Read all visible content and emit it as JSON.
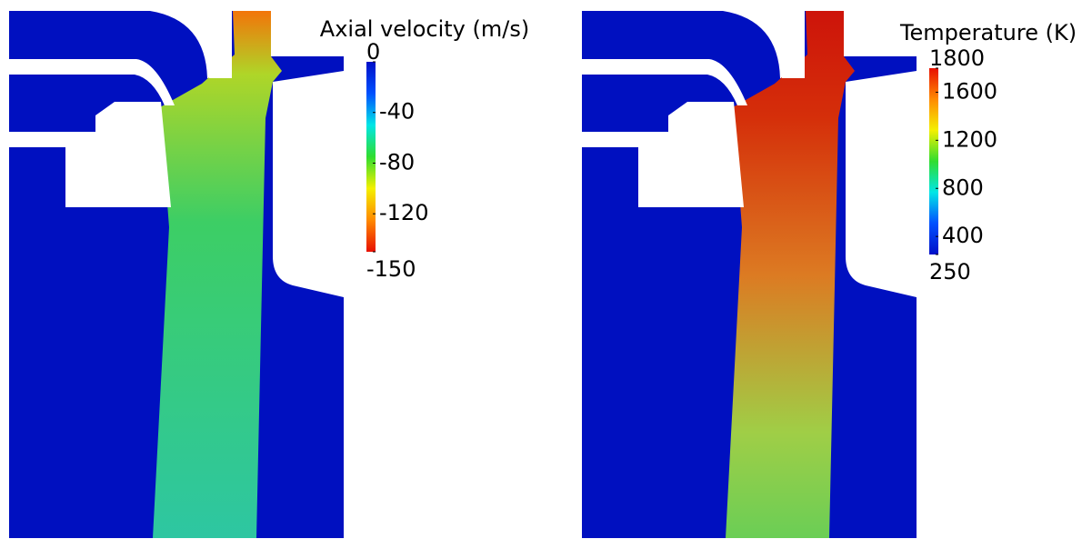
{
  "panels": [
    {
      "colorbar": {
        "title": "Axial velocity (m/s)",
        "lim": [
          -150,
          0
        ],
        "ticks": [
          0,
          -40,
          -80,
          -120,
          -150
        ],
        "colors": [
          "#e81000",
          "#ff8a00",
          "#f4f000",
          "#30dd30",
          "#00e6e6",
          "#0050ff",
          "#0010c8"
        ]
      }
    },
    {
      "colorbar": {
        "title": "Temperature (K)",
        "lim": [
          250,
          1800
        ],
        "ticks": [
          1800,
          1600,
          1200,
          800,
          400,
          250
        ],
        "colors": [
          "#0010c8",
          "#0050ff",
          "#00e6e6",
          "#30dd30",
          "#f4f000",
          "#ff8a00",
          "#e81000"
        ]
      }
    }
  ]
}
